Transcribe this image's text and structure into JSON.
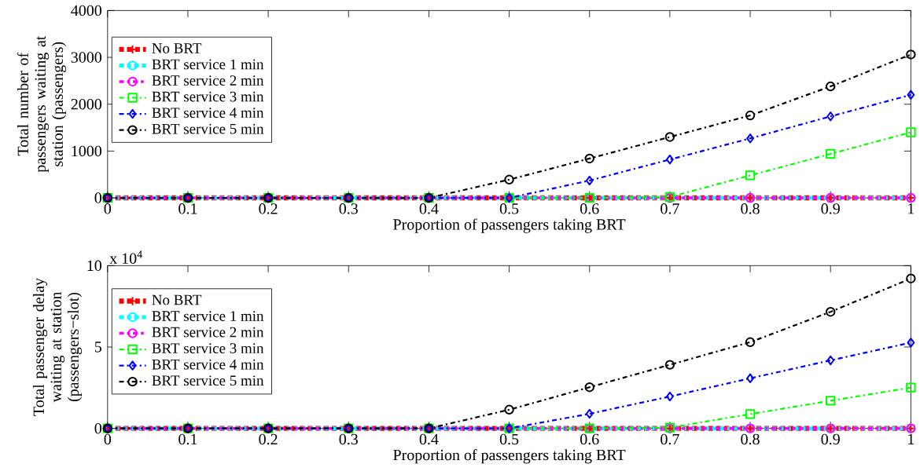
{
  "chart_data": [
    {
      "type": "line",
      "xlabel": "Proportion of passengers taking BRT",
      "ylabel": "Total number of passengers waiting at station (passengers)",
      "x": [
        0,
        0.1,
        0.2,
        0.3,
        0.4,
        0.5,
        0.6,
        0.7,
        0.8,
        0.9,
        1
      ],
      "xlim": [
        0,
        1
      ],
      "xticks": [
        0,
        0.1,
        0.2,
        0.3,
        0.4,
        0.5,
        0.6,
        0.7,
        0.8,
        0.9,
        1
      ],
      "ylim": [
        0,
        4000
      ],
      "yticks": [
        0,
        1000,
        2000,
        3000,
        4000
      ],
      "legend": "top left",
      "line_style": "dashed",
      "grid": false,
      "series": [
        {
          "name": "No BRT",
          "color": "#ff0000",
          "marker": "cross",
          "values": [
            0,
            0,
            0,
            0,
            0,
            0,
            0,
            0,
            0,
            0,
            0
          ]
        },
        {
          "name": "BRT service 1 min",
          "color": "#00ffff",
          "marker": "circle",
          "values": [
            0,
            0,
            0,
            0,
            0,
            0,
            0,
            0,
            0,
            0,
            0
          ]
        },
        {
          "name": "BRT service 2 min",
          "color": "#ff00ff",
          "marker": "circle",
          "values": [
            0,
            0,
            0,
            0,
            0,
            0,
            0,
            0,
            0,
            0,
            0
          ]
        },
        {
          "name": "BRT service 3 min",
          "color": "#00ff00",
          "marker": "square",
          "values": [
            0,
            0,
            0,
            0,
            0,
            0,
            0,
            20,
            480,
            940,
            1400
          ]
        },
        {
          "name": "BRT service 4 min",
          "color": "#0000ff",
          "marker": "diamond",
          "values": [
            0,
            0,
            0,
            0,
            0,
            0,
            370,
            820,
            1270,
            1740,
            2200
          ]
        },
        {
          "name": "BRT service 5 min",
          "color": "#000000",
          "marker": "circle",
          "values": [
            0,
            0,
            0,
            0,
            0,
            390,
            840,
            1300,
            1760,
            2380,
            3060
          ]
        }
      ]
    },
    {
      "type": "line",
      "xlabel": "Proportion of passengers taking BRT",
      "ylabel": "Total passenger delay waiting at station (passengers−slot)",
      "annotations": [
        "x 10$^{4}$"
      ],
      "x": [
        0,
        0.1,
        0.2,
        0.3,
        0.4,
        0.5,
        0.6,
        0.7,
        0.8,
        0.9,
        1
      ],
      "xlim": [
        0,
        1
      ],
      "xticks": [
        0,
        0.1,
        0.2,
        0.3,
        0.4,
        0.5,
        0.6,
        0.7,
        0.8,
        0.9,
        1
      ],
      "ylim": [
        0,
        10
      ],
      "yticks": [
        0,
        5,
        10
      ],
      "legend": "top left",
      "line_style": "dashed",
      "grid": false,
      "series": [
        {
          "name": "No BRT",
          "color": "#ff0000",
          "marker": "cross",
          "values": [
            0,
            0,
            0,
            0,
            0,
            0,
            0,
            0,
            0,
            0,
            0
          ]
        },
        {
          "name": "BRT service 1 min",
          "color": "#00ffff",
          "marker": "circle",
          "values": [
            0,
            0,
            0,
            0,
            0,
            0,
            0,
            0,
            0,
            0,
            0
          ]
        },
        {
          "name": "BRT service 2 min",
          "color": "#ff00ff",
          "marker": "circle",
          "values": [
            0,
            0,
            0,
            0,
            0,
            0,
            0,
            0,
            0,
            0,
            0
          ]
        },
        {
          "name": "BRT service 3 min",
          "color": "#00ff00",
          "marker": "square",
          "values": [
            0,
            0,
            0,
            0,
            0,
            0,
            0,
            0.05,
            0.88,
            1.7,
            2.51
          ]
        },
        {
          "name": "BRT service 4 min",
          "color": "#0000ff",
          "marker": "diamond",
          "values": [
            0,
            0,
            0,
            0,
            0,
            0,
            0.9,
            1.96,
            3.08,
            4.18,
            5.27
          ]
        },
        {
          "name": "BRT service 5 min",
          "color": "#000000",
          "marker": "circle",
          "values": [
            0,
            0,
            0,
            0,
            0,
            1.15,
            2.53,
            3.91,
            5.3,
            7.16,
            9.21
          ]
        }
      ]
    }
  ]
}
